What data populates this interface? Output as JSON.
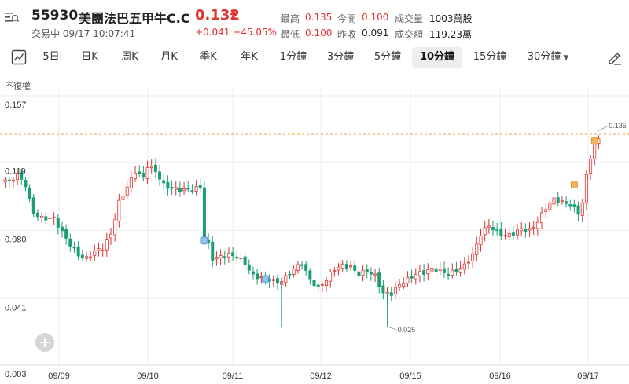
{
  "header": {
    "code": "55930",
    "name": "美團法巴五甲牛C.C",
    "price": "0.132",
    "status": "交易中 09/17 10:07:41",
    "change": "+0.041 +45.05%",
    "stats": [
      {
        "label": "最高",
        "value": "0.135",
        "color": "red"
      },
      {
        "label": "今開",
        "value": "0.100",
        "color": "red"
      },
      {
        "label": "成交量",
        "value": "1003萬股",
        "color": "dark"
      },
      {
        "label": "最低",
        "value": "0.100",
        "color": "red"
      },
      {
        "label": "昨收",
        "value": "0.091",
        "color": "dark"
      },
      {
        "label": "成交額",
        "value": "119.23萬",
        "color": "dark"
      }
    ]
  },
  "tabs": [
    {
      "label": "5日"
    },
    {
      "label": "日K"
    },
    {
      "label": "周K"
    },
    {
      "label": "月K"
    },
    {
      "label": "季K"
    },
    {
      "label": "年K"
    },
    {
      "label": "1分鐘"
    },
    {
      "label": "3分鐘"
    },
    {
      "label": "5分鐘"
    },
    {
      "label": "10分鐘",
      "active": true
    },
    {
      "label": "15分鐘"
    },
    {
      "label": "30分鐘",
      "dropdown": true
    }
  ],
  "adjust_label": "不復權",
  "colors": {
    "up": "#e0332f",
    "down": "#1b9e77",
    "grid": "#eeeeee",
    "dash": "#e8a33d"
  },
  "icons": [
    "menu-search-icon",
    "arrow-up-icon",
    "chart-type-icon",
    "draw-tool-icon",
    "plus-icon"
  ],
  "chart_data": {
    "type": "candlestick",
    "y_ticks": [
      "0.157",
      "0.119",
      "0.080",
      "0.041",
      "0.003"
    ],
    "ylim": [
      0.003,
      0.157
    ],
    "x_ticks": [
      "09/09",
      "09/10",
      "09/11",
      "09/12",
      "09/15",
      "09/16",
      "09/17"
    ],
    "max_label": "0.135",
    "min_label": "0.025",
    "reference_line": 0.135,
    "anchors": [
      [
        0,
        0.109
      ],
      [
        1,
        0.108
      ],
      [
        3,
        0.112
      ],
      [
        4,
        0.109
      ],
      [
        5,
        0.106
      ],
      [
        6,
        0.097
      ],
      [
        7,
        0.09
      ],
      [
        9,
        0.087
      ],
      [
        12,
        0.087
      ],
      [
        14,
        0.079
      ],
      [
        16,
        0.072
      ],
      [
        18,
        0.066
      ],
      [
        20,
        0.064
      ],
      [
        22,
        0.068
      ],
      [
        24,
        0.07
      ],
      [
        26,
        0.078
      ],
      [
        28,
        0.096
      ],
      [
        30,
        0.105
      ],
      [
        31,
        0.109
      ],
      [
        32,
        0.114
      ],
      [
        34,
        0.11
      ],
      [
        35,
        0.117
      ],
      [
        37,
        0.114
      ],
      [
        39,
        0.106
      ],
      [
        41,
        0.104
      ],
      [
        44,
        0.103
      ],
      [
        47,
        0.104
      ],
      [
        48,
        0.105
      ],
      [
        49,
        0.076
      ],
      [
        50,
        0.072
      ],
      [
        51,
        0.064
      ],
      [
        53,
        0.065
      ],
      [
        55,
        0.066
      ],
      [
        57,
        0.065
      ],
      [
        59,
        0.061
      ],
      [
        61,
        0.054
      ],
      [
        63,
        0.053
      ],
      [
        65,
        0.052
      ],
      [
        67,
        0.05
      ],
      [
        69,
        0.053
      ],
      [
        71,
        0.058
      ],
      [
        73,
        0.061
      ],
      [
        75,
        0.052
      ],
      [
        77,
        0.047
      ],
      [
        79,
        0.052
      ],
      [
        81,
        0.058
      ],
      [
        83,
        0.06
      ],
      [
        85,
        0.059
      ],
      [
        87,
        0.055
      ],
      [
        89,
        0.057
      ],
      [
        91,
        0.054
      ],
      [
        93,
        0.044
      ],
      [
        95,
        0.044
      ],
      [
        97,
        0.049
      ],
      [
        99,
        0.052
      ],
      [
        101,
        0.055
      ],
      [
        103,
        0.056
      ],
      [
        105,
        0.058
      ],
      [
        107,
        0.057
      ],
      [
        109,
        0.055
      ],
      [
        111,
        0.057
      ],
      [
        113,
        0.06
      ],
      [
        115,
        0.066
      ],
      [
        117,
        0.078
      ],
      [
        119,
        0.083
      ],
      [
        121,
        0.079
      ],
      [
        123,
        0.077
      ],
      [
        125,
        0.078
      ],
      [
        127,
        0.081
      ],
      [
        129,
        0.08
      ],
      [
        131,
        0.085
      ],
      [
        133,
        0.093
      ],
      [
        135,
        0.098
      ],
      [
        137,
        0.096
      ],
      [
        139,
        0.095
      ],
      [
        141,
        0.09
      ],
      [
        142,
        0.096
      ],
      [
        143,
        0.111
      ],
      [
        144,
        0.122
      ],
      [
        145,
        0.13
      ],
      [
        146,
        0.132
      ]
    ],
    "spikes": [
      {
        "x": 68,
        "low": 0.025
      },
      {
        "x": 94,
        "low": 0.025
      }
    ],
    "markers": [
      {
        "x": 49,
        "value": 0.074,
        "color": "blue"
      },
      {
        "x": 64,
        "value": 0.052,
        "color": "blue"
      },
      {
        "x": 140,
        "value": 0.106,
        "color": "orange"
      },
      {
        "x": 145,
        "value": 0.131,
        "color": "orange"
      }
    ]
  }
}
